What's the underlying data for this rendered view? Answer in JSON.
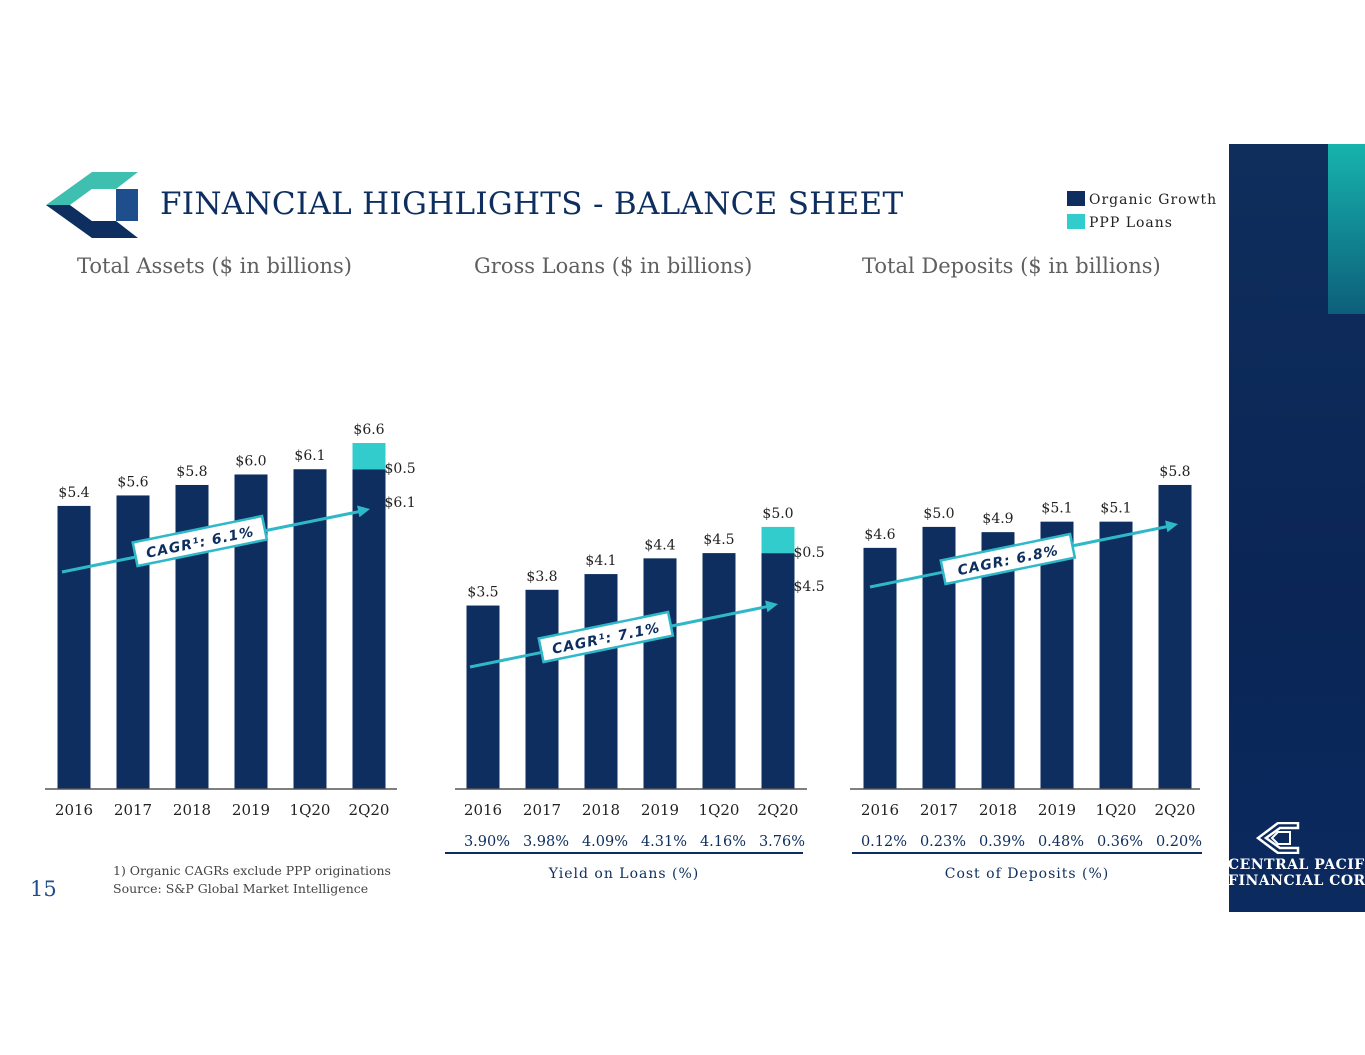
{
  "title": "FINANCIAL HIGHLIGHTS - BALANCE SHEET",
  "page_number": "15",
  "legend": [
    {
      "label": "Organic Growth",
      "color": "#0d2e5e"
    },
    {
      "label": "PPP Loans",
      "color": "#33cccc"
    }
  ],
  "footnotes": {
    "note1": "1)   Organic CAGRs exclude PPP originations",
    "source": "Source:  S&P Global Market Intelligence"
  },
  "brand": {
    "line1": "CENTRAL PACIFIC",
    "line2": "FINANCIAL CORP"
  },
  "colors": {
    "navy": "#0d2e5e",
    "teal": "#33cccc",
    "arrow": "#2fb8c8"
  },
  "chart_data": [
    {
      "type": "bar",
      "title": "Total Assets ($ in billions)",
      "categories": [
        "2016",
        "2017",
        "2018",
        "2019",
        "1Q20",
        "2Q20"
      ],
      "series": [
        {
          "name": "Organic Growth",
          "values": [
            5.4,
            5.6,
            5.8,
            6.0,
            6.1,
            6.1
          ]
        },
        {
          "name": "PPP Loans",
          "values": [
            0,
            0,
            0,
            0,
            0,
            0.5
          ]
        }
      ],
      "total_labels": [
        "$5.4",
        "$5.6",
        "$5.8",
        "$6.0",
        "$6.1",
        "$6.6"
      ],
      "segment_labels": {
        "organic": "$6.1",
        "ppp": "$0.5"
      },
      "cagr_label": "CAGR¹: 6.1%",
      "ylim": [
        0,
        6.6
      ]
    },
    {
      "type": "bar",
      "title": "Gross Loans ($ in billions)",
      "categories": [
        "2016",
        "2017",
        "2018",
        "2019",
        "1Q20",
        "2Q20"
      ],
      "series": [
        {
          "name": "Organic Growth",
          "values": [
            3.5,
            3.8,
            4.1,
            4.4,
            4.5,
            4.5
          ]
        },
        {
          "name": "PPP Loans",
          "values": [
            0,
            0,
            0,
            0,
            0,
            0.5
          ]
        }
      ],
      "total_labels": [
        "$3.5",
        "$3.8",
        "$4.1",
        "$4.4",
        "$4.5",
        "$5.0"
      ],
      "segment_labels": {
        "organic": "$4.5",
        "ppp": "$0.5"
      },
      "cagr_label": "CAGR¹: 7.1%",
      "ratio_values": [
        "3.90%",
        "3.98%",
        "4.09%",
        "4.31%",
        "4.16%",
        "3.76%"
      ],
      "ratio_label": "Yield on Loans (%)",
      "ylim": [
        0,
        6.6
      ]
    },
    {
      "type": "bar",
      "title": "Total Deposits ($ in billions)",
      "categories": [
        "2016",
        "2017",
        "2018",
        "2019",
        "1Q20",
        "2Q20"
      ],
      "series": [
        {
          "name": "Organic Growth",
          "values": [
            4.6,
            5.0,
            4.9,
            5.1,
            5.1,
            5.8
          ]
        }
      ],
      "total_labels": [
        "$4.6",
        "$5.0",
        "$4.9",
        "$5.1",
        "$5.1",
        "$5.8"
      ],
      "cagr_label": "CAGR: 6.8%",
      "ratio_values": [
        "0.12%",
        "0.23%",
        "0.39%",
        "0.48%",
        "0.36%",
        "0.20%"
      ],
      "ratio_label": "Cost of Deposits (%)",
      "ylim": [
        0,
        6.6
      ]
    }
  ]
}
